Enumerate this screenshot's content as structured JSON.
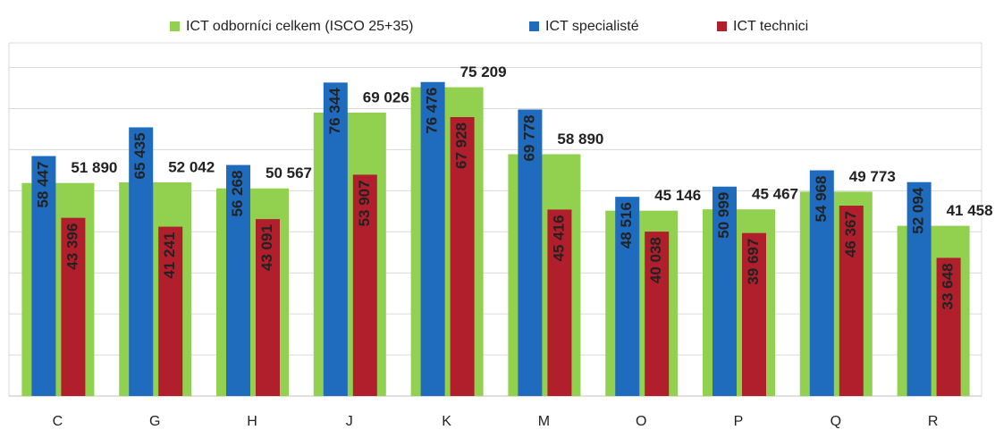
{
  "chart_data": {
    "type": "bar",
    "categories": [
      "C",
      "G",
      "H",
      "J",
      "K",
      "M",
      "O",
      "P",
      "Q",
      "R"
    ],
    "series": [
      {
        "name": "ICT odborníci celkem (ISCO 25+35)",
        "color": "#92d050",
        "label_color": "#3aa84a",
        "values": [
          51890,
          52042,
          50567,
          69026,
          75209,
          58890,
          45146,
          45467,
          49773,
          41458
        ],
        "value_labels": [
          "51 890",
          "52 042",
          "50 567",
          "69 026",
          "75 209",
          "58 890",
          "45 146",
          "45 467",
          "49 773",
          "41 458"
        ]
      },
      {
        "name": "ICT specialisté",
        "color": "#1f6bbd",
        "label_color": "#ffffff",
        "values": [
          58447,
          65435,
          56268,
          76344,
          76476,
          69778,
          48516,
          50999,
          54968,
          52094
        ],
        "value_labels": [
          "58 447",
          "65 435",
          "56 268",
          "76 344",
          "76 476",
          "69 778",
          "48 516",
          "50 999",
          "54 968",
          "52 094"
        ]
      },
      {
        "name": "ICT technici",
        "color": "#b01f2b",
        "label_color": "#ffffff",
        "values": [
          43396,
          41241,
          43091,
          53907,
          67928,
          45416,
          40038,
          39697,
          46367,
          33648
        ],
        "value_labels": [
          "43 396",
          "41 241",
          "43 091",
          "53 907",
          "67 928",
          "45 416",
          "40 038",
          "39 697",
          "46 367",
          "33 648"
        ]
      }
    ],
    "ylim": [
      0,
      86000
    ],
    "yticks": [
      0,
      10000,
      20000,
      30000,
      40000,
      50000,
      60000,
      70000,
      80000
    ],
    "grid": true
  }
}
